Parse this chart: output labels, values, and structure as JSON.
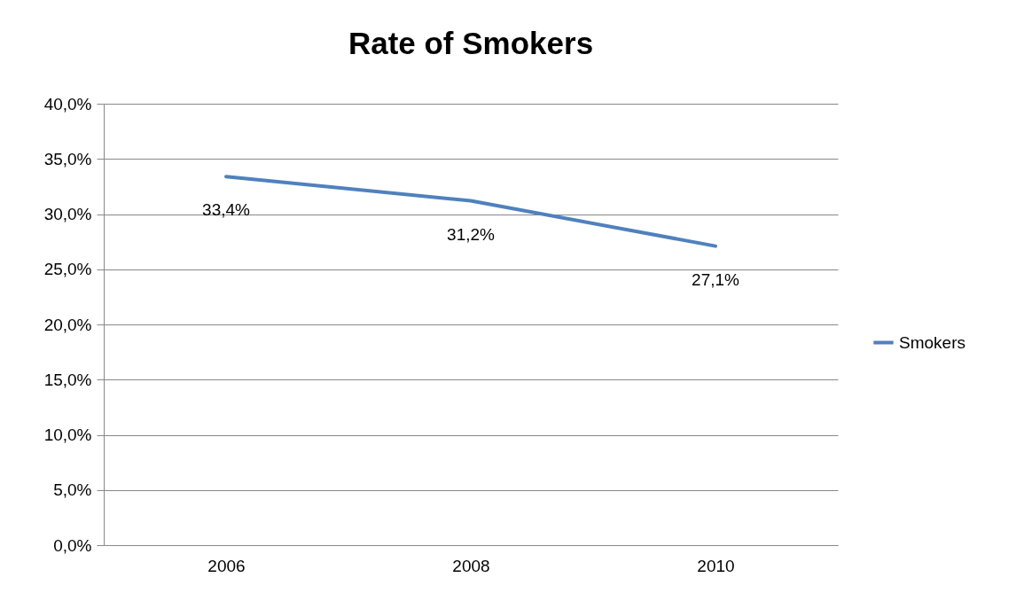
{
  "chart_data": {
    "type": "line",
    "title": "Rate of Smokers",
    "categories": [
      "2006",
      "2008",
      "2010"
    ],
    "series": [
      {
        "name": "Smokers",
        "color": "#4f81bd",
        "values": [
          33.4,
          31.2,
          27.1
        ],
        "value_labels": [
          "33,4%",
          "31,2%",
          "27,1%"
        ]
      }
    ],
    "ylim": [
      0,
      40
    ],
    "yticks": [
      {
        "value": 0,
        "label": "0,0%"
      },
      {
        "value": 5,
        "label": "5,0%"
      },
      {
        "value": 10,
        "label": "10,0%"
      },
      {
        "value": 15,
        "label": "15,0%"
      },
      {
        "value": 20,
        "label": "20,0%"
      },
      {
        "value": 25,
        "label": "25,0%"
      },
      {
        "value": 30,
        "label": "30,0%"
      },
      {
        "value": 35,
        "label": "35,0%"
      },
      {
        "value": 40,
        "label": "40,0%"
      }
    ],
    "grid": "y",
    "legend": "right",
    "marker": "none",
    "line_style": "solid"
  }
}
